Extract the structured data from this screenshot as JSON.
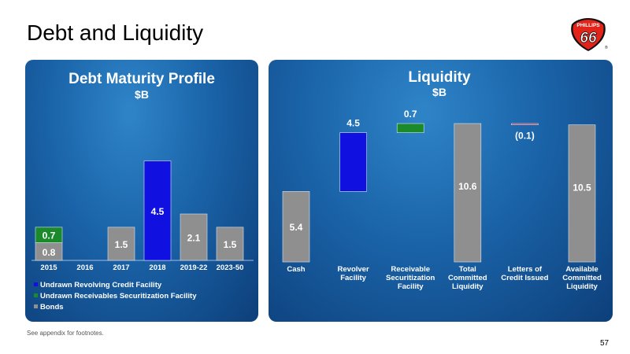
{
  "header": {
    "title": "Debt and Liquidity"
  },
  "logo": {
    "top_text": "PHILLIPS",
    "number": "66",
    "registered": "®"
  },
  "footer": {
    "note": "See appendix for footnotes.",
    "page_number": "57"
  },
  "colors": {
    "revolving": "#1010e0",
    "receivables": "#1a8a2a",
    "bonds": "#8f8f8f",
    "letters": "#b02040",
    "logo_red": "#e2231a"
  },
  "chart_data": [
    {
      "type": "bar",
      "stacked": true,
      "title": "Debt Maturity Profile",
      "subtitle": "$B",
      "categories": [
        "2015",
        "2016",
        "2017",
        "2018",
        "2019-22",
        "2023-50"
      ],
      "series": [
        {
          "name": "Bonds",
          "values": [
            0.8,
            0,
            1.5,
            0,
            2.1,
            1.5
          ]
        },
        {
          "name": "Undrawn Receivables Securitization Facility",
          "values": [
            0.7,
            0,
            0,
            0,
            0,
            0
          ]
        },
        {
          "name": "Undrawn Revolving Credit Facility",
          "values": [
            0,
            0,
            0,
            4.5,
            0,
            0
          ]
        }
      ],
      "legend_position": "bottom-left",
      "grid": false
    },
    {
      "type": "bar",
      "waterfall": true,
      "title": "Liquidity",
      "subtitle": "$B",
      "categories": [
        "Cash",
        "Revolver Facility",
        "Receivable Securitization Facility",
        "Total Committed Liquidity",
        "Letters of Credit Issued",
        "Available Committed Liquidity"
      ],
      "values": [
        5.4,
        4.5,
        0.7,
        10.6,
        -0.1,
        10.5
      ],
      "value_labels": [
        "5.4",
        "4.5",
        "0.7",
        "10.6",
        "(0.1)",
        "10.5"
      ],
      "grid": false
    }
  ]
}
